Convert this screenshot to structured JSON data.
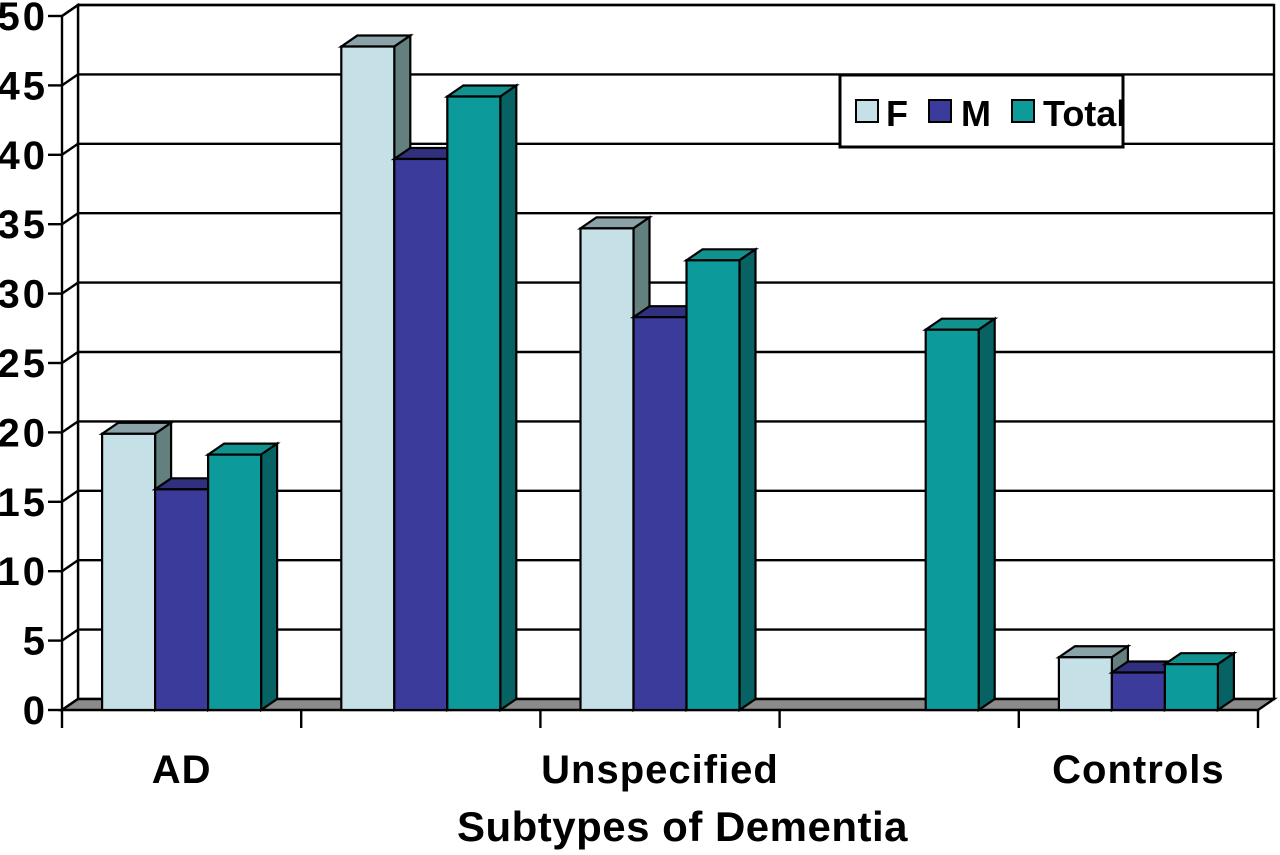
{
  "chart_data": {
    "type": "bar",
    "style": "3d-clustered",
    "title": "",
    "xlabel": "Subtypes of Dementia",
    "ylabel": "",
    "ylim": [
      0,
      50
    ],
    "ytick_step": 5,
    "yticks": [
      0,
      5,
      10,
      15,
      20,
      25,
      30,
      35,
      40,
      45,
      50
    ],
    "grid": true,
    "categories": [
      "AD",
      "",
      "Unspecified",
      "",
      "Controls"
    ],
    "series": [
      {
        "name": "F",
        "values": [
          19.9,
          47.8,
          34.7,
          null,
          3.8
        ],
        "front_color": "#C5E0E6",
        "top_color": "#8AA2A8",
        "side_color": "#63807F"
      },
      {
        "name": "M",
        "values": [
          15.9,
          39.7,
          28.3,
          null,
          2.7
        ],
        "front_color": "#3B3B9C",
        "top_color": "#30307E",
        "side_color": "#26265F"
      },
      {
        "name": "Total",
        "values": [
          18.4,
          44.2,
          32.4,
          27.4,
          3.3
        ],
        "front_color": "#0D9A9B",
        "top_color": "#12928F",
        "side_color": "#066263"
      }
    ],
    "legend": {
      "position": "top-right",
      "labels": [
        "F",
        "M",
        "Total"
      ]
    },
    "colors": {
      "background": "#FFFFFF",
      "wall": "#FFFFFF",
      "floor": "#8B8B8B",
      "line": "#000000",
      "text": "#000000",
      "legend_bg": "#FFFFFF"
    }
  }
}
